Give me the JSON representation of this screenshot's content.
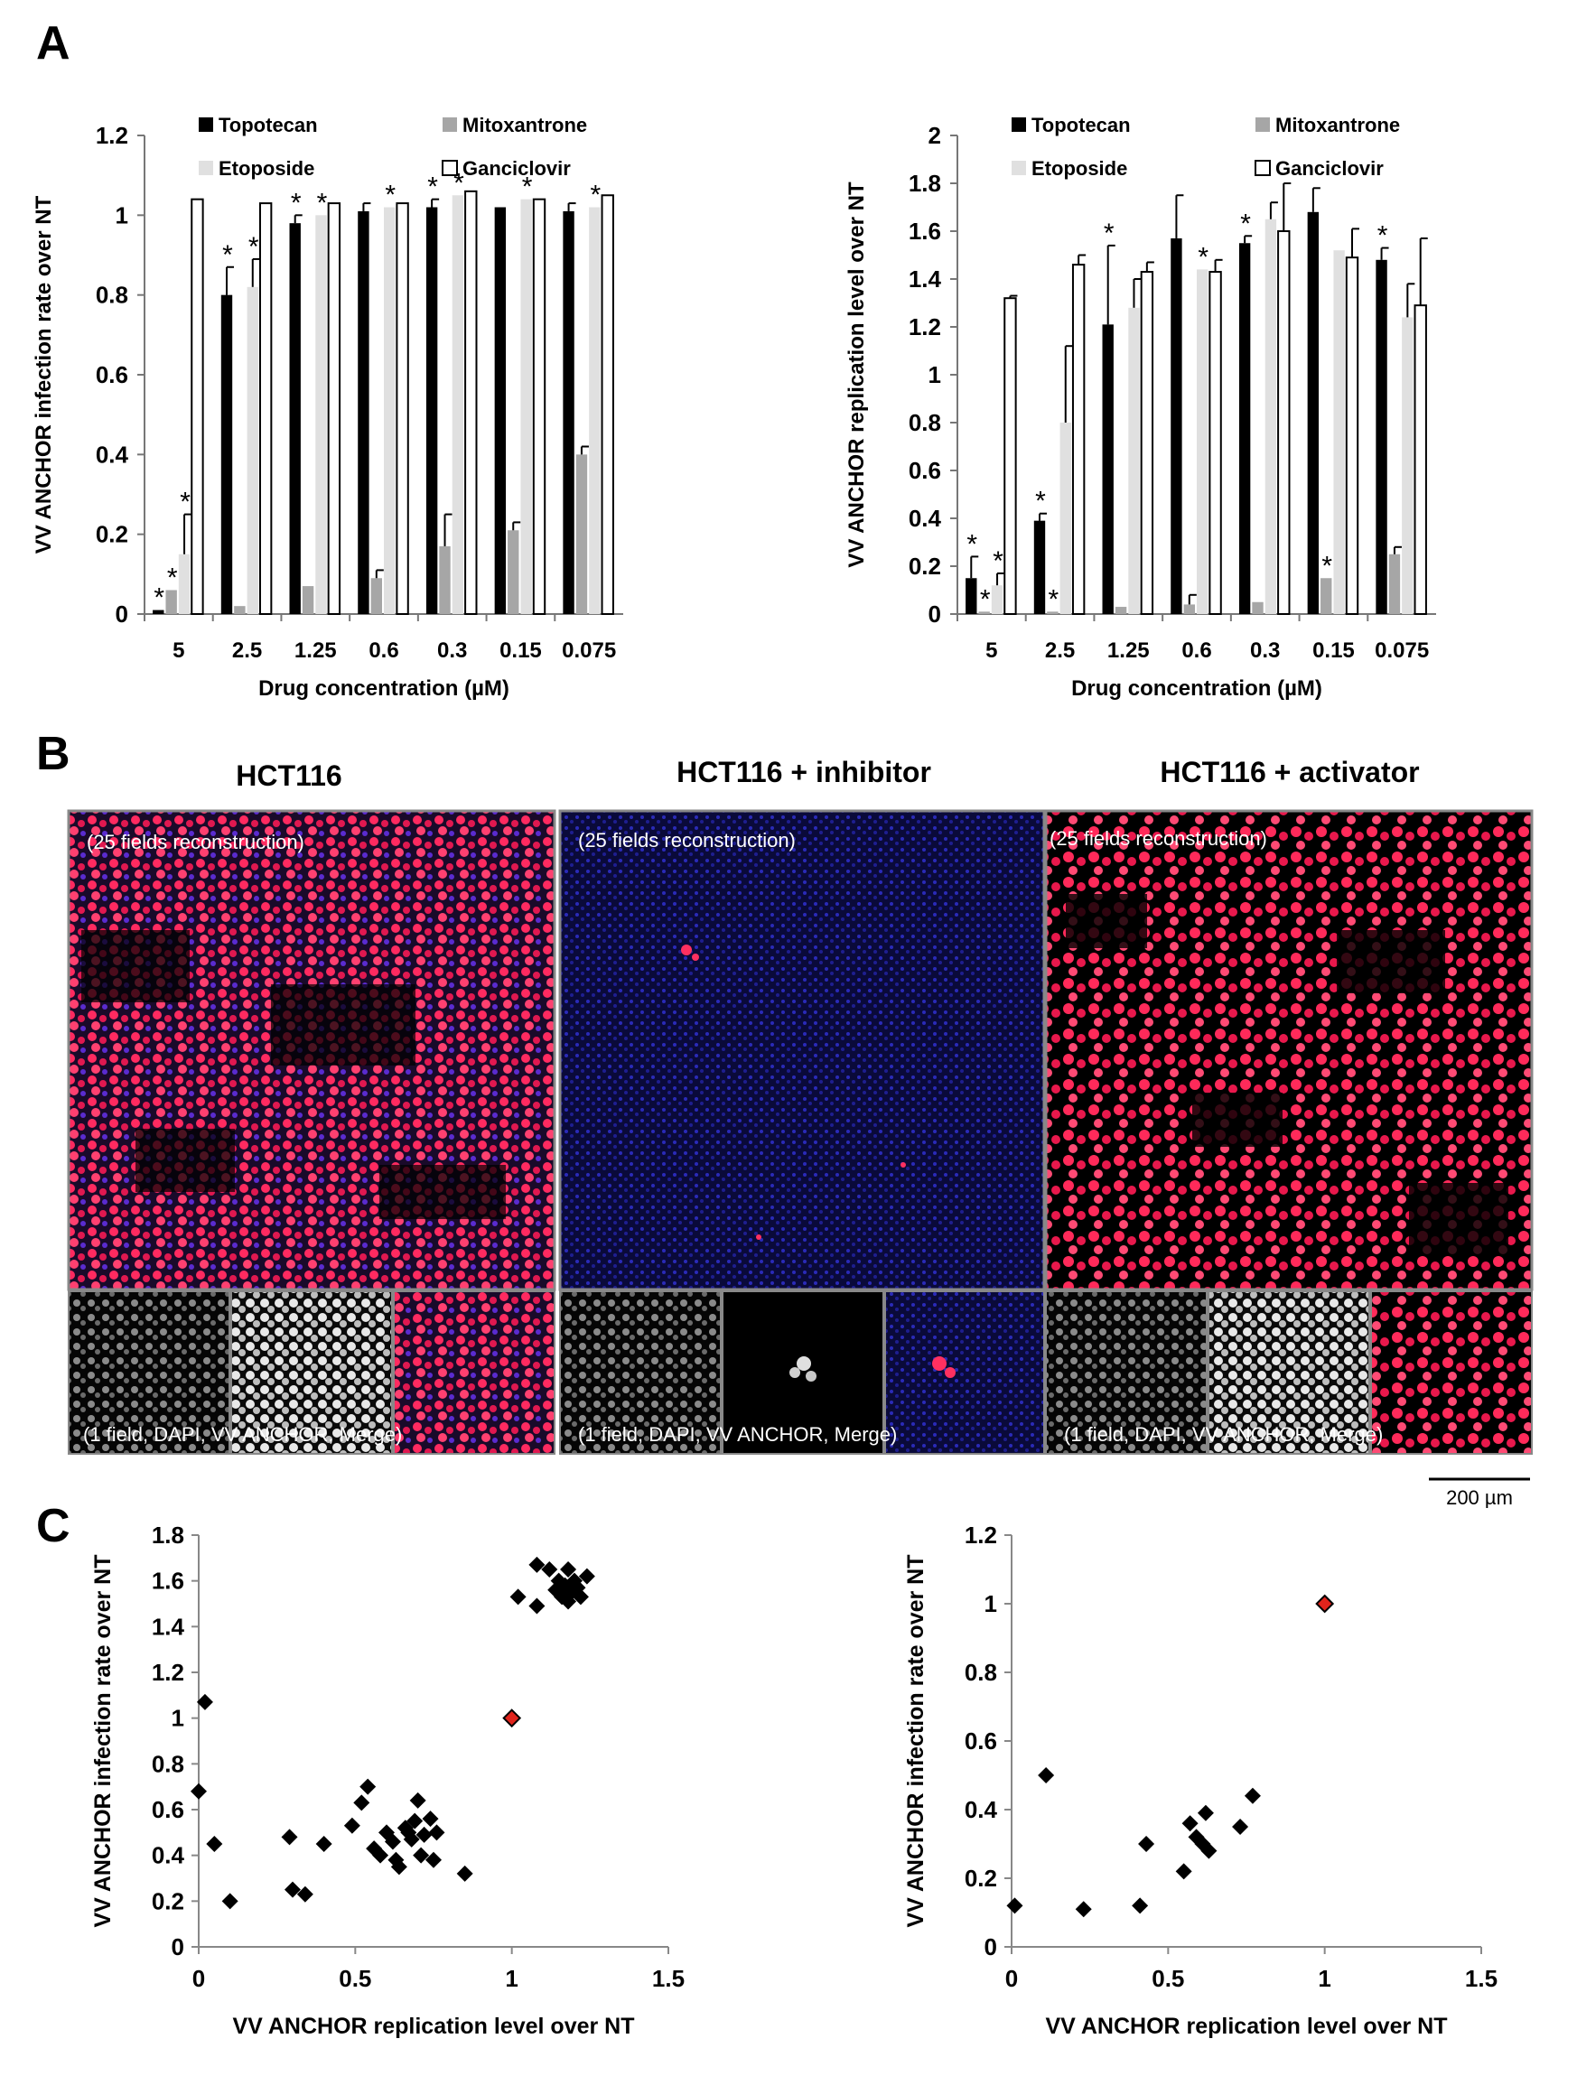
{
  "panels": {
    "a": "A",
    "b": "B",
    "c": "C"
  },
  "colors": {
    "topotecan": "#000000",
    "mitoxantrone": "#a6a6a6",
    "etoposide": "#e0e0e0",
    "ganciclovir": "#ffffff",
    "highlight": "#e0241c",
    "marker": "#000000"
  },
  "panel_b": {
    "titles": [
      "HCT116",
      "HCT116 + inhibitor",
      "HCT116 + activator"
    ],
    "recon_label": "(25 fields reconstruction)",
    "field_label": "(1 field, DAPI, VV ANCHOR, Merge)",
    "scale_bar": "200 µm"
  },
  "chart_data": [
    {
      "type": "bar",
      "id": "A-left",
      "xlabel": "Drug concentration (µM)",
      "ylabel": "VV ANCHOR infection rate over NT",
      "ylim": [
        0,
        1.2
      ],
      "yticks": [
        0,
        0.2,
        0.4,
        0.6,
        0.8,
        1,
        1.2
      ],
      "yticklabels": [
        "0",
        "0.2",
        "0.4",
        "0.6",
        "0.8",
        "1",
        "1.2"
      ],
      "categories": [
        "5",
        "2.5",
        "1.25",
        "0.6",
        "0.3",
        "0.15",
        "0.075"
      ],
      "series": [
        {
          "name": "Topotecan",
          "values": [
            0.01,
            0.8,
            0.98,
            1.01,
            1.02,
            1.02,
            1.01
          ],
          "errors": [
            0.0,
            0.07,
            0.02,
            0.02,
            0.02,
            0.0,
            0.02
          ]
        },
        {
          "name": "Mitoxantrone",
          "values": [
            0.06,
            0.02,
            0.07,
            0.09,
            0.17,
            0.21,
            0.4
          ],
          "errors": [
            0.0,
            0.0,
            0.0,
            0.02,
            0.08,
            0.02,
            0.02
          ]
        },
        {
          "name": "Etoposide",
          "values": [
            0.15,
            0.82,
            1.0,
            1.02,
            1.05,
            1.04,
            1.02
          ],
          "errors": [
            0.1,
            0.07,
            0.0,
            0.0,
            0.0,
            0.0,
            0.0
          ]
        },
        {
          "name": "Ganciclovir",
          "values": [
            1.04,
            1.03,
            1.03,
            1.03,
            1.06,
            1.04,
            1.05
          ],
          "errors": [
            0.0,
            0.0,
            0.0,
            0.0,
            0.0,
            0.0,
            0.0
          ]
        }
      ],
      "asterisk_label": "*",
      "asterisks": [
        [
          0,
          0
        ],
        [
          0,
          1
        ],
        [
          0,
          2
        ],
        [
          1,
          0
        ],
        [
          1,
          2
        ],
        [
          2,
          0
        ],
        [
          2,
          2
        ],
        [
          3,
          2
        ],
        [
          4,
          0
        ],
        [
          4,
          2
        ],
        [
          5,
          2
        ],
        [
          6,
          2
        ]
      ],
      "legend": "top"
    },
    {
      "type": "bar",
      "id": "A-right",
      "xlabel": "Drug concentration (µM)",
      "ylabel": "VV ANCHOR replication level over NT",
      "ylim": [
        0,
        2
      ],
      "yticks": [
        0,
        0.2,
        0.4,
        0.6,
        0.8,
        1,
        1.2,
        1.4,
        1.6,
        1.8,
        2
      ],
      "yticklabels": [
        "0",
        "0.2",
        "0.4",
        "0.6",
        "0.8",
        "1",
        "1.2",
        "1.4",
        "1.6",
        "1.8",
        "2"
      ],
      "categories": [
        "5",
        "2.5",
        "1.25",
        "0.6",
        "0.3",
        "0.15",
        "0.075"
      ],
      "series": [
        {
          "name": "Topotecan",
          "values": [
            0.15,
            0.39,
            1.21,
            1.57,
            1.55,
            1.68,
            1.48
          ],
          "errors": [
            0.09,
            0.03,
            0.33,
            0.18,
            0.03,
            0.1,
            0.05
          ]
        },
        {
          "name": "Mitoxantrone",
          "values": [
            0.01,
            0.01,
            0.03,
            0.04,
            0.05,
            0.15,
            0.25
          ],
          "errors": [
            0.0,
            0.0,
            0.0,
            0.04,
            0.0,
            0.0,
            0.03
          ]
        },
        {
          "name": "Etoposide",
          "values": [
            0.12,
            0.8,
            1.28,
            1.44,
            1.65,
            1.52,
            1.24
          ],
          "errors": [
            0.05,
            0.32,
            0.12,
            0.0,
            0.07,
            0.0,
            0.14
          ]
        },
        {
          "name": "Ganciclovir",
          "values": [
            1.32,
            1.46,
            1.43,
            1.43,
            1.6,
            1.49,
            1.29
          ],
          "errors": [
            0.01,
            0.04,
            0.04,
            0.05,
            0.2,
            0.12,
            0.28
          ]
        }
      ],
      "asterisk_label": "*",
      "asterisks": [
        [
          0,
          0
        ],
        [
          0,
          1
        ],
        [
          0,
          2
        ],
        [
          1,
          0
        ],
        [
          1,
          1
        ],
        [
          2,
          0
        ],
        [
          3,
          2
        ],
        [
          4,
          0
        ],
        [
          5,
          1
        ],
        [
          6,
          0
        ]
      ],
      "legend": "top"
    },
    {
      "type": "scatter",
      "id": "C-left",
      "xlabel": "VV ANCHOR replication level over NT",
      "ylabel": "VV ANCHOR infection rate over NT",
      "xlim": [
        0,
        1.5
      ],
      "ylim": [
        0,
        1.8
      ],
      "xticks": [
        0,
        0.5,
        1,
        1.5
      ],
      "xticklabels": [
        "0",
        "0.5",
        "1",
        "1.5"
      ],
      "yticks": [
        0,
        0.2,
        0.4,
        0.6,
        0.8,
        1,
        1.2,
        1.4,
        1.6,
        1.8
      ],
      "yticklabels": [
        "0",
        "0.2",
        "0.4",
        "0.6",
        "0.8",
        "1",
        "1.2",
        "1.4",
        "1.6",
        "1.8"
      ],
      "points": [
        [
          0.0,
          0.68
        ],
        [
          0.02,
          1.07
        ],
        [
          0.05,
          0.45
        ],
        [
          0.1,
          0.2
        ],
        [
          0.29,
          0.48
        ],
        [
          0.3,
          0.25
        ],
        [
          0.34,
          0.23
        ],
        [
          0.4,
          0.45
        ],
        [
          0.49,
          0.53
        ],
        [
          0.52,
          0.63
        ],
        [
          0.54,
          0.7
        ],
        [
          0.56,
          0.43
        ],
        [
          0.58,
          0.4
        ],
        [
          0.6,
          0.5
        ],
        [
          0.62,
          0.46
        ],
        [
          0.63,
          0.38
        ],
        [
          0.64,
          0.35
        ],
        [
          0.66,
          0.52
        ],
        [
          0.67,
          0.5
        ],
        [
          0.68,
          0.47
        ],
        [
          0.69,
          0.55
        ],
        [
          0.7,
          0.64
        ],
        [
          0.71,
          0.4
        ],
        [
          0.72,
          0.49
        ],
        [
          0.74,
          0.56
        ],
        [
          0.75,
          0.38
        ],
        [
          0.76,
          0.5
        ],
        [
          0.85,
          0.32
        ],
        [
          1.02,
          1.53
        ],
        [
          1.08,
          1.67
        ],
        [
          1.08,
          1.49
        ],
        [
          1.12,
          1.65
        ],
        [
          1.14,
          1.56
        ],
        [
          1.15,
          1.6
        ],
        [
          1.16,
          1.53
        ],
        [
          1.17,
          1.58
        ],
        [
          1.18,
          1.51
        ],
        [
          1.18,
          1.65
        ],
        [
          1.19,
          1.55
        ],
        [
          1.2,
          1.6
        ],
        [
          1.21,
          1.57
        ],
        [
          1.22,
          1.53
        ],
        [
          1.24,
          1.62
        ]
      ],
      "highlight": [
        1.0,
        1.0
      ]
    },
    {
      "type": "scatter",
      "id": "C-right",
      "xlabel": "VV ANCHOR replication level over NT",
      "ylabel": "VV ANCHOR infection rate over NT",
      "xlim": [
        0,
        1.5
      ],
      "ylim": [
        0,
        1.2
      ],
      "xticks": [
        0,
        0.5,
        1,
        1.5
      ],
      "xticklabels": [
        "0",
        "0.5",
        "1",
        "1.5"
      ],
      "yticks": [
        0,
        0.2,
        0.4,
        0.6,
        0.8,
        1,
        1.2
      ],
      "yticklabels": [
        "0",
        "0.2",
        "0.4",
        "0.6",
        "0.8",
        "1",
        "1.2"
      ],
      "points": [
        [
          0.01,
          0.12
        ],
        [
          0.11,
          0.5
        ],
        [
          0.23,
          0.11
        ],
        [
          0.41,
          0.12
        ],
        [
          0.43,
          0.3
        ],
        [
          0.55,
          0.22
        ],
        [
          0.57,
          0.36
        ],
        [
          0.59,
          0.32
        ],
        [
          0.61,
          0.3
        ],
        [
          0.62,
          0.39
        ],
        [
          0.63,
          0.28
        ],
        [
          0.73,
          0.35
        ],
        [
          0.77,
          0.44
        ]
      ],
      "highlight": [
        1.0,
        1.0
      ]
    }
  ]
}
